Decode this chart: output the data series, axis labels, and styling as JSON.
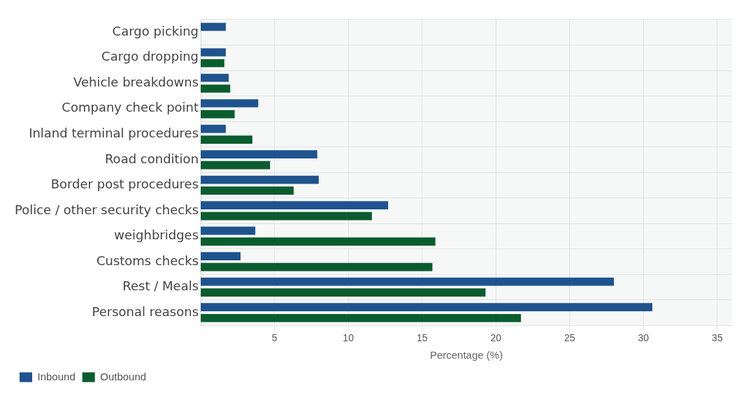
{
  "chart_data": {
    "type": "bar",
    "orientation": "horizontal",
    "xlabel": "Percentage (%)",
    "categories": [
      "Cargo picking",
      "Cargo dropping",
      "Vehicle breakdowns",
      "Company check point",
      "Inland terminal procedures",
      "Road condition",
      "Border post procedures",
      "Police / other security checks",
      "weighbridges",
      "Customs checks",
      "Rest / Meals",
      "Personal reasons"
    ],
    "series": [
      {
        "name": "Inbound",
        "color": "#1f538e",
        "values": [
          1.7,
          1.7,
          1.9,
          3.9,
          1.7,
          7.9,
          8.0,
          12.7,
          3.7,
          2.7,
          28.0,
          30.6
        ]
      },
      {
        "name": "Outbound",
        "color": "#0a5c2e",
        "values": [
          null,
          1.6,
          2.0,
          2.3,
          3.5,
          4.7,
          6.3,
          11.6,
          15.9,
          15.7,
          19.3,
          21.7
        ]
      }
    ],
    "xlim": [
      0,
      36
    ],
    "xticks": [
      5,
      10,
      15,
      20,
      25,
      30,
      35
    ],
    "grid": true,
    "legend": "bottom left"
  }
}
